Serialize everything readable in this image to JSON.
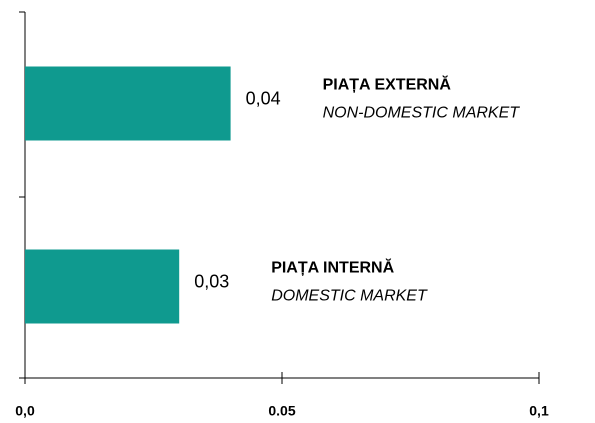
{
  "chart_data": {
    "type": "hbar",
    "categories": [
      "PIAȚA EXTERNĂ",
      "PIAȚA INTERNĂ"
    ],
    "category_subtitles": [
      "NON-DOMESTIC MARKET",
      "DOMESTIC MARKET"
    ],
    "values": [
      0.04,
      0.03
    ],
    "value_labels": [
      "0,04",
      "0,03"
    ],
    "color": "#0f9a8f",
    "xlim": [
      0,
      0.1
    ],
    "xticks": [
      {
        "value": 0,
        "label": "0,0"
      },
      0.05,
      {
        "value": 0.1,
        "label": "0,1"
      }
    ]
  }
}
